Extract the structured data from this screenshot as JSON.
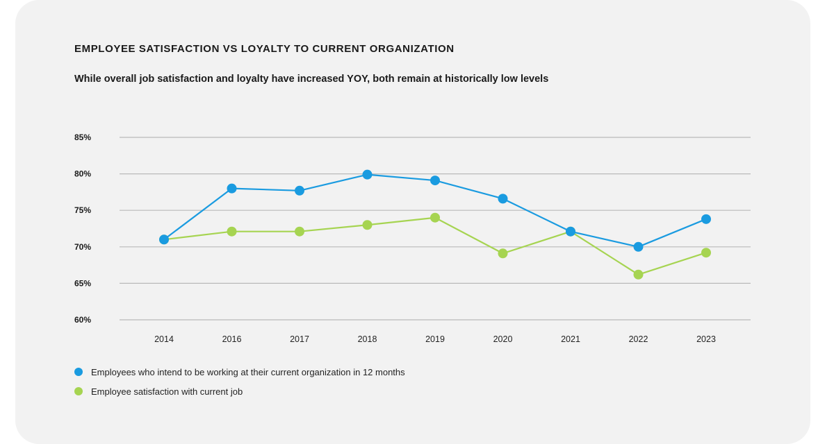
{
  "colors": {
    "series_1": "#1a9be0",
    "series_2": "#a6d451"
  },
  "chart_data": {
    "type": "line",
    "title": "EMPLOYEE SATISFACTION VS LOYALTY TO CURRENT ORGANIZATION",
    "subtitle": "While overall job satisfaction and loyalty have increased YOY, both remain at historically low levels",
    "xlabel": "",
    "ylabel": "",
    "categories": [
      "2014",
      "2016",
      "2017",
      "2018",
      "2019",
      "2020",
      "2021",
      "2022",
      "2023"
    ],
    "ylim": [
      60,
      85
    ],
    "y_ticks": [
      85,
      80,
      75,
      70,
      65,
      60
    ],
    "y_tick_labels": [
      "85%",
      "80%",
      "75%",
      "70%",
      "65%",
      "60%"
    ],
    "grid": true,
    "legend_position": "bottom-left",
    "series": [
      {
        "name": "Employees who intend to be working at their current organization in 12 months",
        "values": [
          71,
          78,
          77.7,
          79.9,
          79.1,
          76.6,
          72.1,
          70,
          73.8
        ]
      },
      {
        "name": "Employee satisfaction with current job",
        "values": [
          71,
          72.1,
          72.1,
          73,
          74,
          69.1,
          72.1,
          66.2,
          69.2
        ]
      }
    ]
  }
}
